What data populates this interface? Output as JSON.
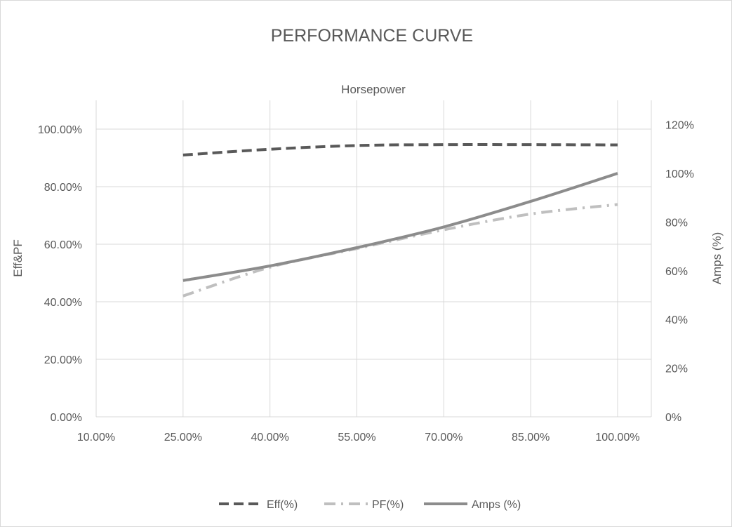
{
  "chart_data": {
    "type": "line",
    "title": "PERFORMANCE CURVE",
    "subtitle": "Horsepower",
    "ylabel": "Eff&PF",
    "y2label": "Amps (%)",
    "x": [
      0.25,
      0.4,
      0.55,
      0.7,
      0.85,
      1.0
    ],
    "xlim": [
      0.1,
      1.0
    ],
    "xticks": [
      "10.00%",
      "25.00%",
      "40.00%",
      "55.00%",
      "70.00%",
      "85.00%",
      "100.00%"
    ],
    "ylim": [
      0,
      1.1
    ],
    "yticks": [
      "0.00%",
      "20.00%",
      "40.00%",
      "60.00%",
      "80.00%",
      "100.00%"
    ],
    "y2lim": [
      0,
      1.3
    ],
    "y2ticks": [
      "0%",
      "20%",
      "40%",
      "60%",
      "80%",
      "100%",
      "120%"
    ],
    "grid": true,
    "legend": "bottom",
    "series": [
      {
        "name": "Eff(%)",
        "axis": "left",
        "style": "dashed",
        "color": "#595959",
        "values": [
          0.91,
          0.93,
          0.943,
          0.946,
          0.946,
          0.945
        ]
      },
      {
        "name": "PF(%)",
        "axis": "left",
        "style": "dashdot",
        "color": "#bfbfbf",
        "values": [
          0.42,
          0.52,
          0.585,
          0.65,
          0.705,
          0.738
        ]
      },
      {
        "name": "Amps (%)",
        "axis": "right",
        "style": "solid",
        "color": "#8c8c8c",
        "values": [
          0.56,
          0.62,
          0.695,
          0.78,
          0.885,
          1.0
        ]
      }
    ]
  }
}
